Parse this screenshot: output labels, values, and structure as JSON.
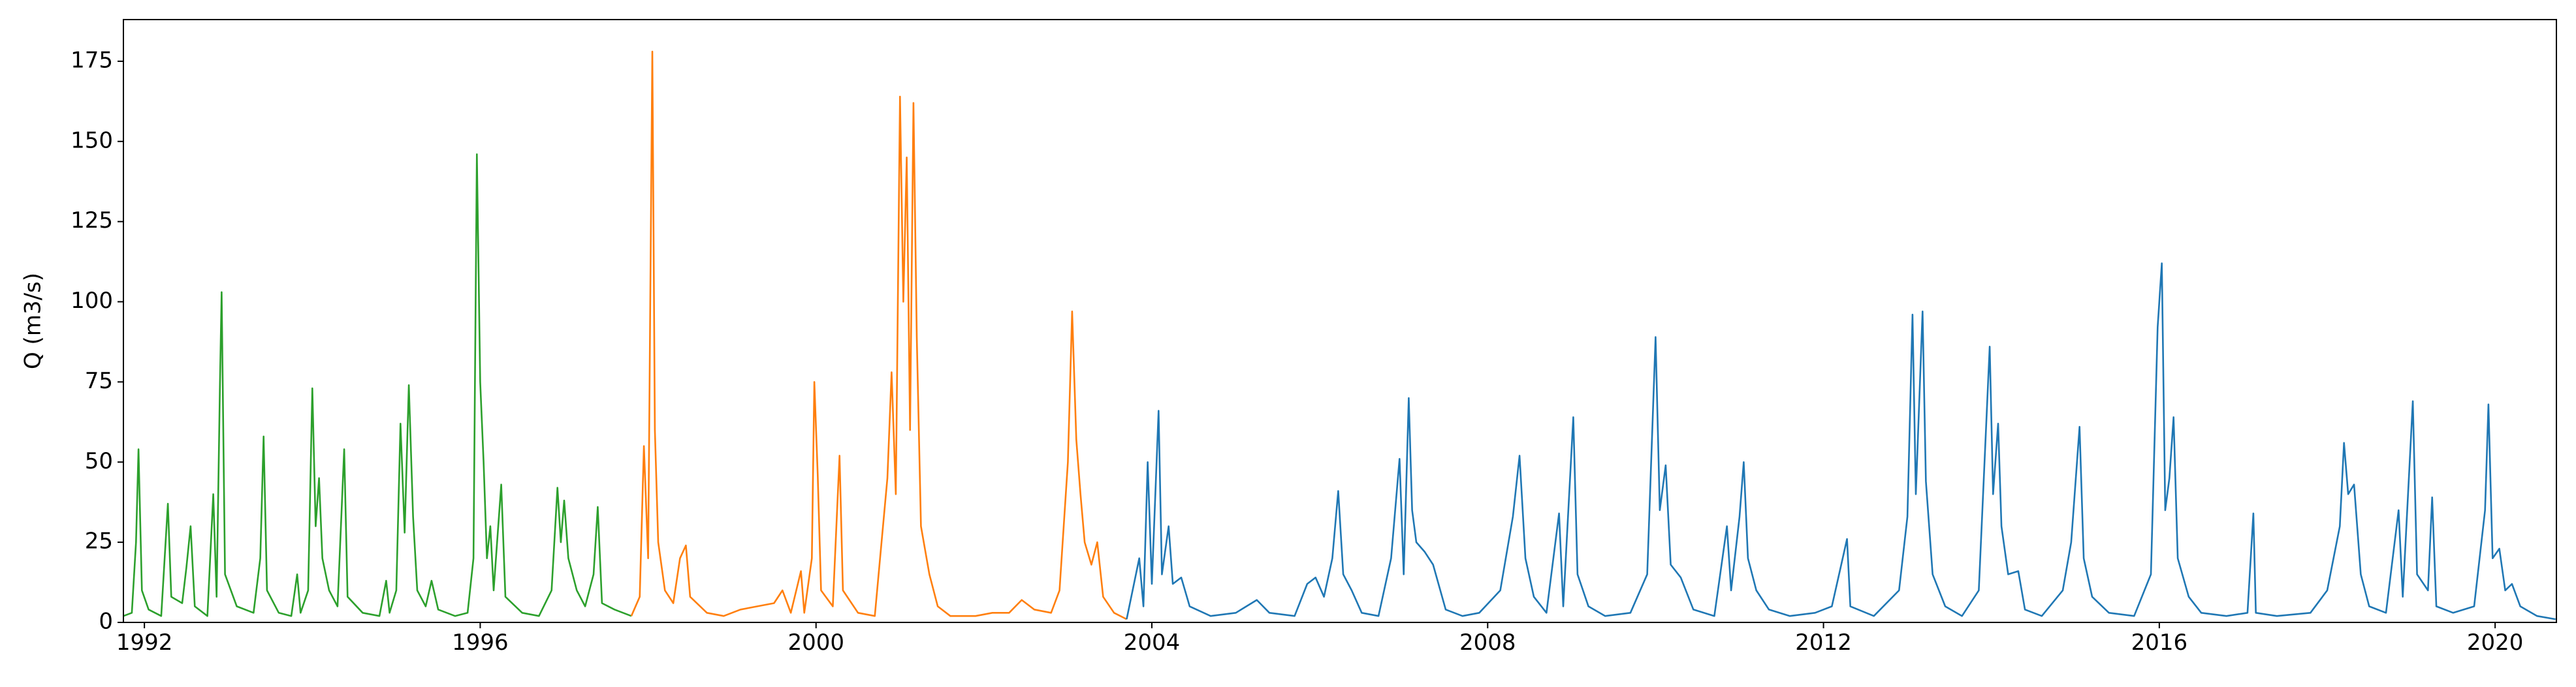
{
  "chart_data": {
    "type": "line",
    "ylabel": "Q (m3/s)",
    "xlim": [
      1991.75,
      2020.73
    ],
    "xticks": [
      1992,
      1996,
      2000,
      2004,
      2008,
      2012,
      2016,
      2020
    ],
    "ylim": [
      0,
      188
    ],
    "yticks": [
      0,
      25,
      50,
      75,
      100,
      125,
      150,
      175
    ],
    "grid": false,
    "series": [
      {
        "color": "#2ca02c",
        "x": [
          1991.75,
          1991.85,
          1991.9,
          1991.93,
          1991.97,
          1992.05,
          1992.2,
          1992.28,
          1992.32,
          1992.45,
          1992.5,
          1992.55,
          1992.6,
          1992.75,
          1992.82,
          1992.86,
          1992.9,
          1992.92,
          1992.96,
          1993.1,
          1993.3,
          1993.38,
          1993.42,
          1993.46,
          1993.6,
          1993.75,
          1993.82,
          1993.86,
          1993.95,
          1994.0,
          1994.04,
          1994.08,
          1994.12,
          1994.2,
          1994.3,
          1994.38,
          1994.42,
          1994.6,
          1994.8,
          1994.88,
          1994.92,
          1995.0,
          1995.05,
          1995.1,
          1995.15,
          1995.2,
          1995.25,
          1995.35,
          1995.42,
          1995.5,
          1995.7,
          1995.85,
          1995.92,
          1995.96,
          1996.0,
          1996.04,
          1996.08,
          1996.12,
          1996.16,
          1996.25,
          1996.3,
          1996.5,
          1996.7,
          1996.85,
          1996.92,
          1996.96,
          1997.0,
          1997.05,
          1997.15,
          1997.25,
          1997.35,
          1997.4,
          1997.45,
          1997.6,
          1997.8
        ],
        "values": [
          2,
          3,
          25,
          54,
          10,
          4,
          2,
          37,
          8,
          6,
          17,
          30,
          5,
          2,
          40,
          8,
          75,
          103,
          15,
          5,
          3,
          20,
          58,
          10,
          3,
          2,
          15,
          3,
          10,
          73,
          30,
          45,
          20,
          10,
          5,
          54,
          8,
          3,
          2,
          13,
          3,
          10,
          62,
          28,
          74,
          33,
          10,
          5,
          13,
          4,
          2,
          3,
          20,
          146,
          75,
          50,
          20,
          30,
          10,
          43,
          8,
          3,
          2,
          10,
          42,
          25,
          38,
          20,
          10,
          5,
          15,
          36,
          6,
          4,
          2
        ]
      },
      {
        "color": "#ff7f0e",
        "x": [
          1997.8,
          1997.9,
          1997.95,
          1998.0,
          1998.05,
          1998.08,
          1998.12,
          1998.2,
          1998.3,
          1998.38,
          1998.45,
          1998.5,
          1998.7,
          1998.9,
          1999.1,
          1999.3,
          1999.5,
          1999.6,
          1999.7,
          1999.82,
          1999.86,
          1999.95,
          1999.98,
          2000.02,
          2000.06,
          2000.2,
          2000.28,
          2000.32,
          2000.5,
          2000.7,
          2000.85,
          2000.9,
          2000.95,
          2001.0,
          2001.04,
          2001.08,
          2001.12,
          2001.16,
          2001.2,
          2001.25,
          2001.35,
          2001.45,
          2001.6,
          2001.9,
          2002.1,
          2002.3,
          2002.45,
          2002.6,
          2002.8,
          2002.9,
          2002.95,
          2003.0,
          2003.05,
          2003.1,
          2003.15,
          2003.2,
          2003.28,
          2003.35,
          2003.42,
          2003.55,
          2003.7
        ],
        "values": [
          2,
          8,
          55,
          20,
          178,
          60,
          25,
          10,
          6,
          20,
          24,
          8,
          3,
          2,
          4,
          5,
          6,
          10,
          3,
          16,
          3,
          20,
          75,
          46,
          10,
          5,
          52,
          10,
          3,
          2,
          45,
          78,
          40,
          164,
          100,
          145,
          60,
          162,
          89,
          30,
          15,
          5,
          2,
          2,
          3,
          3,
          7,
          4,
          3,
          10,
          30,
          50,
          97,
          57,
          40,
          25,
          18,
          25,
          8,
          3,
          1
        ]
      },
      {
        "color": "#1f77b4",
        "x": [
          2003.7,
          2003.85,
          2003.9,
          2003.95,
          2004.0,
          2004.08,
          2004.12,
          2004.2,
          2004.25,
          2004.35,
          2004.45,
          2004.7,
          2005.0,
          2005.25,
          2005.4,
          2005.7,
          2005.85,
          2005.95,
          2006.05,
          2006.15,
          2006.22,
          2006.28,
          2006.38,
          2006.5,
          2006.7,
          2006.85,
          2006.95,
          2007.0,
          2007.06,
          2007.1,
          2007.15,
          2007.25,
          2007.35,
          2007.5,
          2007.7,
          2007.9,
          2008.15,
          2008.3,
          2008.38,
          2008.45,
          2008.55,
          2008.7,
          2008.85,
          2008.9,
          2009.02,
          2009.07,
          2009.2,
          2009.4,
          2009.7,
          2009.9,
          2010.0,
          2010.05,
          2010.12,
          2010.18,
          2010.3,
          2010.45,
          2010.7,
          2010.85,
          2010.9,
          2011.0,
          2011.05,
          2011.1,
          2011.2,
          2011.35,
          2011.6,
          2011.9,
          2012.1,
          2012.28,
          2012.32,
          2012.6,
          2012.9,
          2013.0,
          2013.06,
          2013.1,
          2013.18,
          2013.22,
          2013.3,
          2013.45,
          2013.65,
          2013.85,
          2013.98,
          2014.02,
          2014.08,
          2014.12,
          2014.2,
          2014.32,
          2014.4,
          2014.6,
          2014.85,
          2014.95,
          2015.05,
          2015.1,
          2015.2,
          2015.4,
          2015.7,
          2015.9,
          2015.98,
          2016.03,
          2016.07,
          2016.12,
          2016.17,
          2016.22,
          2016.35,
          2016.5,
          2016.8,
          2017.05,
          2017.12,
          2017.15,
          2017.4,
          2017.8,
          2018.0,
          2018.15,
          2018.2,
          2018.25,
          2018.32,
          2018.4,
          2018.5,
          2018.7,
          2018.85,
          2018.9,
          2019.02,
          2019.07,
          2019.2,
          2019.25,
          2019.3,
          2019.5,
          2019.75,
          2019.88,
          2019.92,
          2019.97,
          2020.05,
          2020.12,
          2020.2,
          2020.3,
          2020.5,
          2020.72
        ],
        "values": [
          1,
          20,
          5,
          50,
          12,
          66,
          15,
          30,
          12,
          14,
          5,
          2,
          3,
          7,
          3,
          2,
          12,
          14,
          8,
          20,
          41,
          15,
          10,
          3,
          2,
          20,
          51,
          15,
          70,
          35,
          25,
          22,
          18,
          4,
          2,
          3,
          10,
          33,
          52,
          20,
          8,
          3,
          34,
          5,
          64,
          15,
          5,
          2,
          3,
          15,
          89,
          35,
          49,
          18,
          14,
          4,
          2,
          30,
          10,
          33,
          50,
          20,
          10,
          4,
          2,
          3,
          5,
          26,
          5,
          2,
          10,
          33,
          96,
          40,
          97,
          44,
          15,
          5,
          2,
          10,
          86,
          40,
          62,
          30,
          15,
          16,
          4,
          2,
          10,
          25,
          61,
          20,
          8,
          3,
          2,
          15,
          92,
          112,
          35,
          45,
          64,
          20,
          8,
          3,
          2,
          3,
          34,
          3,
          2,
          3,
          10,
          30,
          56,
          40,
          43,
          15,
          5,
          3,
          35,
          8,
          69,
          15,
          10,
          39,
          5,
          3,
          5,
          35,
          68,
          20,
          23,
          10,
          12,
          5,
          2,
          1
        ]
      }
    ]
  }
}
